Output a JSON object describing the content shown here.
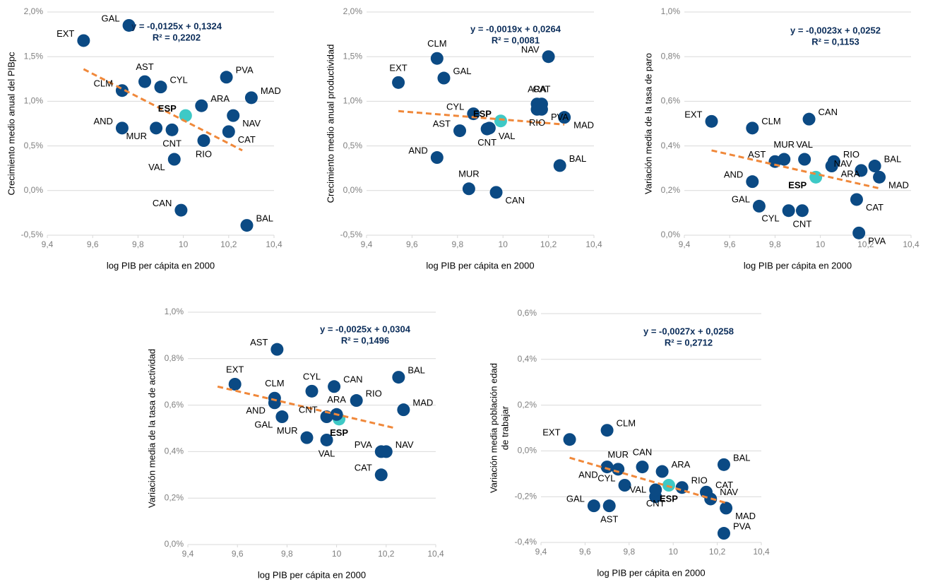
{
  "chart_data": [
    {
      "type": "scatter",
      "ylabel": "Crecimiento medio anual del PIBpc",
      "xlabel": "log PIB per cápita en 2000",
      "xlim": [
        9.4,
        10.4
      ],
      "xticks": [
        {
          "value": 9.4,
          "label": "9,4"
        },
        {
          "value": 9.6,
          "label": "9,6"
        },
        {
          "value": 9.8,
          "label": "9,8"
        },
        10,
        {
          "value": 10.2,
          "label": "10,2"
        },
        {
          "value": 10.4,
          "label": "10,4"
        }
      ],
      "ylim": [
        -0.5,
        2.0
      ],
      "yticks": [
        {
          "value": -0.5,
          "label": "-0,5%"
        },
        {
          "value": 0,
          "label": "0,0%"
        },
        {
          "value": 0.5,
          "label": "0,5%"
        },
        {
          "value": 1.0,
          "label": "1,0%"
        },
        {
          "value": 1.5,
          "label": "1,5%"
        },
        {
          "value": 2.0,
          "label": "2,0%"
        }
      ],
      "grid": true,
      "color": "#0b4a84",
      "point_labels": [
        "EXT",
        "GAL",
        "AST",
        "CYL",
        "CLM",
        "ESP",
        "ARA",
        "PVA",
        "MAD",
        "NAV",
        "AND",
        "MUR",
        "CNT",
        "CAT",
        "RIO",
        "VAL",
        "CAN",
        "BAL"
      ],
      "x": [
        9.56,
        9.76,
        9.83,
        9.9,
        9.73,
        10.01,
        10.08,
        10.19,
        10.3,
        10.22,
        9.73,
        9.88,
        9.95,
        10.2,
        10.09,
        9.96,
        9.99,
        10.28
      ],
      "values": [
        1.68,
        1.85,
        1.22,
        1.16,
        1.12,
        0.84,
        0.95,
        1.27,
        1.04,
        0.84,
        0.7,
        0.7,
        0.68,
        0.66,
        0.56,
        0.35,
        -0.22,
        -0.39
      ],
      "colors": [
        "#0b4a84",
        "#0b4a84",
        "#0b4a84",
        "#0b4a84",
        "#0b4a84",
        "#3ec9c6",
        "#0b4a84",
        "#0b4a84",
        "#0b4a84",
        "#0b4a84",
        "#0b4a84",
        "#0b4a84",
        "#0b4a84",
        "#0b4a84",
        "#0b4a84",
        "#0b4a84",
        "#0b4a84",
        "#0b4a84"
      ],
      "trendline": {
        "x": [
          9.56,
          10.26
        ],
        "values": [
          1.36,
          0.45
        ],
        "color": "#f0883a",
        "equation": "y = -0,0125x + 0,1324",
        "r2": "R² = 0,2202"
      }
    },
    {
      "type": "scatter",
      "ylabel": "Crecimiento medio anual productividad",
      "xlabel": "log PIB per cápita en 2000",
      "xlim": [
        9.4,
        10.4
      ],
      "xticks": [
        {
          "value": 9.4,
          "label": "9,4"
        },
        {
          "value": 9.6,
          "label": "9,6"
        },
        {
          "value": 9.8,
          "label": "9,8"
        },
        10,
        {
          "value": 10.2,
          "label": "10,2"
        },
        {
          "value": 10.4,
          "label": "10,4"
        }
      ],
      "ylim": [
        -0.5,
        2.0
      ],
      "yticks": [
        {
          "value": -0.5,
          "label": "-0,5%"
        },
        {
          "value": 0,
          "label": "0,0%"
        },
        {
          "value": 0.5,
          "label": "0,5%"
        },
        {
          "value": 1.0,
          "label": "1,0%"
        },
        {
          "value": 1.5,
          "label": "1,5%"
        },
        {
          "value": 2.0,
          "label": "2,0%"
        }
      ],
      "grid": true,
      "color": "#0b4a84",
      "point_labels": [
        "EXT",
        "CLM",
        "GAL",
        "NAV",
        "ARA",
        "RIO",
        "CAT",
        "PVA",
        "CYL",
        "ESP",
        "MAD",
        "AST",
        "CNT",
        "VAL",
        "AND",
        "BAL",
        "MUR",
        "CAN"
      ],
      "x": [
        9.54,
        9.71,
        9.74,
        10.2,
        10.15,
        10.15,
        10.17,
        10.17,
        9.87,
        9.99,
        10.27,
        9.81,
        9.93,
        9.94,
        9.71,
        10.25,
        9.85,
        9.97
      ],
      "values": [
        1.21,
        1.48,
        1.26,
        1.5,
        0.97,
        0.91,
        0.97,
        0.91,
        0.86,
        0.78,
        0.82,
        0.67,
        0.69,
        0.7,
        0.37,
        0.28,
        0.02,
        -0.02
      ],
      "colors": [
        "#0b4a84",
        "#0b4a84",
        "#0b4a84",
        "#0b4a84",
        "#0b4a84",
        "#0b4a84",
        "#0b4a84",
        "#0b4a84",
        "#0b4a84",
        "#3ec9c6",
        "#0b4a84",
        "#0b4a84",
        "#0b4a84",
        "#0b4a84",
        "#0b4a84",
        "#0b4a84",
        "#0b4a84",
        "#0b4a84"
      ],
      "trendline": {
        "x": [
          9.54,
          10.27
        ],
        "values": [
          0.89,
          0.74
        ],
        "color": "#f0883a",
        "equation": "y = -0,0019x + 0,0264",
        "r2": "R² = 0,0081"
      }
    },
    {
      "type": "scatter",
      "ylabel": "Variación media de la tasa de paro",
      "xlabel": "log PIB per cápita en 2000",
      "xlim": [
        9.4,
        10.4
      ],
      "xticks": [
        {
          "value": 9.4,
          "label": "9,4"
        },
        {
          "value": 9.6,
          "label": "9,6"
        },
        {
          "value": 9.8,
          "label": "9,8"
        },
        10,
        {
          "value": 10.2,
          "label": "10,2"
        },
        {
          "value": 10.4,
          "label": "10,4"
        }
      ],
      "ylim": [
        0,
        1.0
      ],
      "yticks": [
        {
          "value": 0,
          "label": "0,0%"
        },
        {
          "value": 0.2,
          "label": "0,2%"
        },
        {
          "value": 0.4,
          "label": "0,4%"
        },
        {
          "value": 0.6,
          "label": "0,6%"
        },
        {
          "value": 0.8,
          "label": "0,8%"
        },
        {
          "value": 1.0,
          "label": "1,0%"
        }
      ],
      "grid": true,
      "color": "#0b4a84",
      "point_labels": [
        "EXT",
        "CLM",
        "CAN",
        "AST",
        "MUR",
        "VAL",
        "RIO",
        "ARA",
        "NAV",
        "BAL",
        "ESP",
        "MAD",
        "AND",
        "CAT",
        "GAL",
        "CYL",
        "CNT",
        "PVA"
      ],
      "x": [
        9.52,
        9.7,
        9.95,
        9.8,
        9.84,
        9.93,
        10.06,
        10.05,
        10.18,
        10.24,
        9.98,
        10.26,
        9.7,
        10.16,
        9.73,
        9.86,
        9.92,
        10.17
      ],
      "values": [
        0.51,
        0.48,
        0.52,
        0.33,
        0.34,
        0.34,
        0.33,
        0.31,
        0.29,
        0.31,
        0.26,
        0.26,
        0.24,
        0.16,
        0.13,
        0.11,
        0.11,
        0.01
      ],
      "colors": [
        "#0b4a84",
        "#0b4a84",
        "#0b4a84",
        "#0b4a84",
        "#0b4a84",
        "#0b4a84",
        "#0b4a84",
        "#0b4a84",
        "#0b4a84",
        "#0b4a84",
        "#3ec9c6",
        "#0b4a84",
        "#0b4a84",
        "#0b4a84",
        "#0b4a84",
        "#0b4a84",
        "#0b4a84",
        "#0b4a84"
      ],
      "trendline": {
        "x": [
          9.52,
          10.26
        ],
        "values": [
          0.38,
          0.21
        ],
        "color": "#f0883a",
        "equation": "y = -0,0023x + 0,0252",
        "r2": "R² = 0,1153"
      }
    },
    {
      "type": "scatter",
      "ylabel": "Variación media de la tasa de actividad",
      "xlabel": "log PIB per cápita en 2000",
      "xlim": [
        9.4,
        10.4
      ],
      "xticks": [
        {
          "value": 9.4,
          "label": "9,4"
        },
        {
          "value": 9.6,
          "label": "9,6"
        },
        {
          "value": 9.8,
          "label": "9,8"
        },
        10,
        {
          "value": 10.2,
          "label": "10,2"
        },
        {
          "value": 10.4,
          "label": "10,4"
        }
      ],
      "ylim": [
        0,
        1.0
      ],
      "yticks": [
        {
          "value": 0,
          "label": "0,0%"
        },
        {
          "value": 0.2,
          "label": "0,2%"
        },
        {
          "value": 0.4,
          "label": "0,4%"
        },
        {
          "value": 0.6,
          "label": "0,6%"
        },
        {
          "value": 0.8,
          "label": "0,8%"
        },
        {
          "value": 1.0,
          "label": "1,0%"
        }
      ],
      "grid": true,
      "color": "#0b4a84",
      "point_labels": [
        "AST",
        "EXT",
        "BAL",
        "CLM",
        "AND",
        "CYL",
        "CAN",
        "RIO",
        "MAD",
        "GAL",
        "CNT",
        "ESP",
        "ARA",
        "MUR",
        "VAL",
        "PVA",
        "NAV",
        "CAT"
      ],
      "x": [
        9.76,
        9.59,
        10.25,
        9.75,
        9.75,
        9.9,
        9.99,
        10.08,
        10.27,
        9.78,
        9.96,
        10.01,
        10.0,
        9.88,
        9.96,
        10.18,
        10.2,
        10.18
      ],
      "values": [
        0.84,
        0.69,
        0.72,
        0.63,
        0.61,
        0.66,
        0.68,
        0.62,
        0.58,
        0.55,
        0.55,
        0.54,
        0.56,
        0.46,
        0.45,
        0.4,
        0.4,
        0.3
      ],
      "colors": [
        "#0b4a84",
        "#0b4a84",
        "#0b4a84",
        "#0b4a84",
        "#0b4a84",
        "#0b4a84",
        "#0b4a84",
        "#0b4a84",
        "#0b4a84",
        "#0b4a84",
        "#0b4a84",
        "#3ec9c6",
        "#0b4a84",
        "#0b4a84",
        "#0b4a84",
        "#0b4a84",
        "#0b4a84",
        "#0b4a84"
      ],
      "trendline": {
        "x": [
          9.52,
          10.24
        ],
        "values": [
          0.68,
          0.5
        ],
        "color": "#f0883a",
        "equation": "y = -0,0025x + 0,0304",
        "r2": "R² = 0,1496"
      }
    },
    {
      "type": "scatter",
      "ylabel": [
        "Variación media  población edad",
        "de trabajar"
      ],
      "xlabel": "log PIB per cápita en 2000",
      "xlim": [
        9.4,
        10.4
      ],
      "xticks": [
        {
          "value": 9.4,
          "label": "9,4"
        },
        {
          "value": 9.6,
          "label": "9,6"
        },
        {
          "value": 9.8,
          "label": "9,8"
        },
        10,
        {
          "value": 10.2,
          "label": "10,2"
        },
        {
          "value": 10.4,
          "label": "10,4"
        }
      ],
      "ylim": [
        -0.4,
        0.6
      ],
      "yticks": [
        {
          "value": -0.4,
          "label": "-0,4%"
        },
        {
          "value": -0.2,
          "label": "-0,2%"
        },
        {
          "value": 0,
          "label": "0,0%"
        },
        {
          "value": 0.2,
          "label": "0,2%"
        },
        {
          "value": 0.4,
          "label": "0,4%"
        },
        {
          "value": 0.6,
          "label": "0,6%"
        }
      ],
      "grid": true,
      "color": "#0b4a84",
      "point_labels": [
        "EXT",
        "CLM",
        "MUR",
        "CAN",
        "AND",
        "ARA",
        "BAL",
        "CYL",
        "ESP",
        "RIO",
        "VAL",
        "CNT",
        "CAT",
        "NAV",
        "MAD",
        "GAL",
        "AST",
        "PVA"
      ],
      "x": [
        9.53,
        9.7,
        9.75,
        9.86,
        9.7,
        9.95,
        10.23,
        9.78,
        9.98,
        10.04,
        9.92,
        9.92,
        10.15,
        10.17,
        10.24,
        9.64,
        9.71,
        10.23
      ],
      "values": [
        0.05,
        0.09,
        -0.08,
        -0.07,
        -0.07,
        -0.09,
        -0.06,
        -0.15,
        -0.15,
        -0.16,
        -0.2,
        -0.17,
        -0.18,
        -0.21,
        -0.25,
        -0.24,
        -0.24,
        -0.36
      ],
      "colors": [
        "#0b4a84",
        "#0b4a84",
        "#0b4a84",
        "#0b4a84",
        "#0b4a84",
        "#0b4a84",
        "#0b4a84",
        "#0b4a84",
        "#3ec9c6",
        "#0b4a84",
        "#0b4a84",
        "#0b4a84",
        "#0b4a84",
        "#0b4a84",
        "#0b4a84",
        "#0b4a84",
        "#0b4a84",
        "#0b4a84"
      ],
      "trendline": {
        "x": [
          9.53,
          10.25
        ],
        "values": [
          -0.03,
          -0.23
        ],
        "color": "#f0883a",
        "equation": "y = -0,0027x + 0,0258",
        "r2": "R² = 0,2712"
      }
    }
  ]
}
